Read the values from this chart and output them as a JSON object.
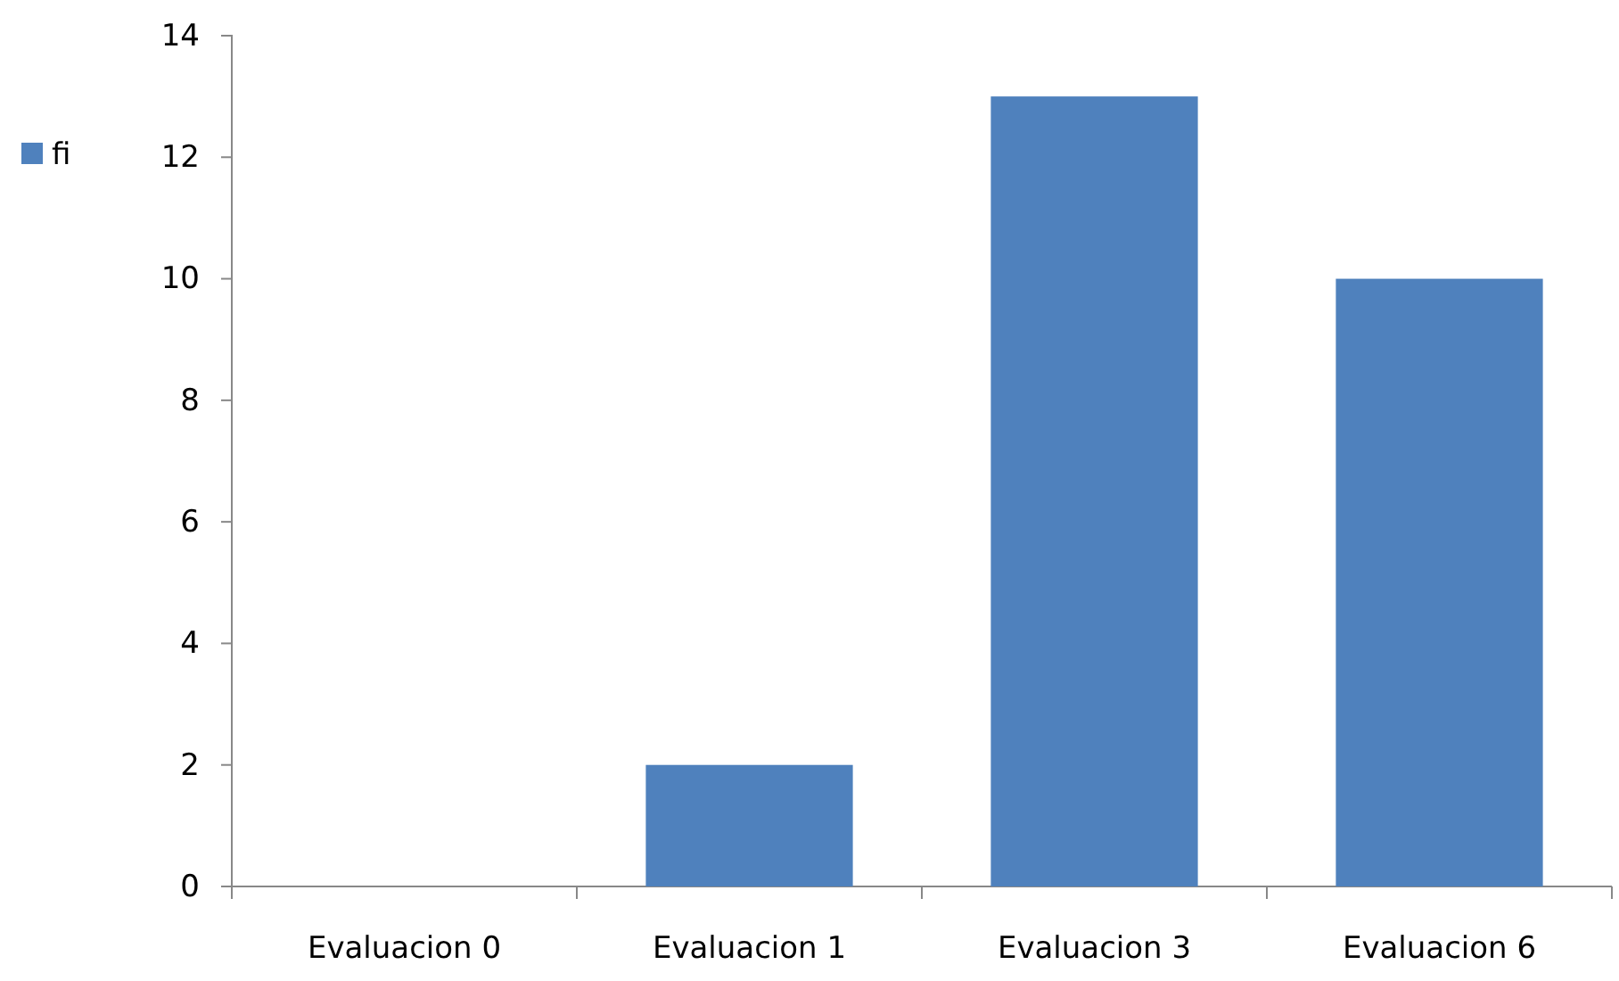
{
  "chart_data": {
    "type": "bar",
    "categories": [
      "Evaluacion 0",
      "Evaluacion 1",
      "Evaluacion 3",
      "Evaluacion 6"
    ],
    "series": [
      {
        "name": "fi",
        "color": "#4f81bd",
        "values": [
          0,
          2,
          13,
          10
        ]
      }
    ],
    "ylim": [
      0,
      14
    ],
    "yticks": [
      0,
      2,
      4,
      6,
      8,
      10,
      12,
      14
    ],
    "grid": false,
    "legend": "left"
  }
}
